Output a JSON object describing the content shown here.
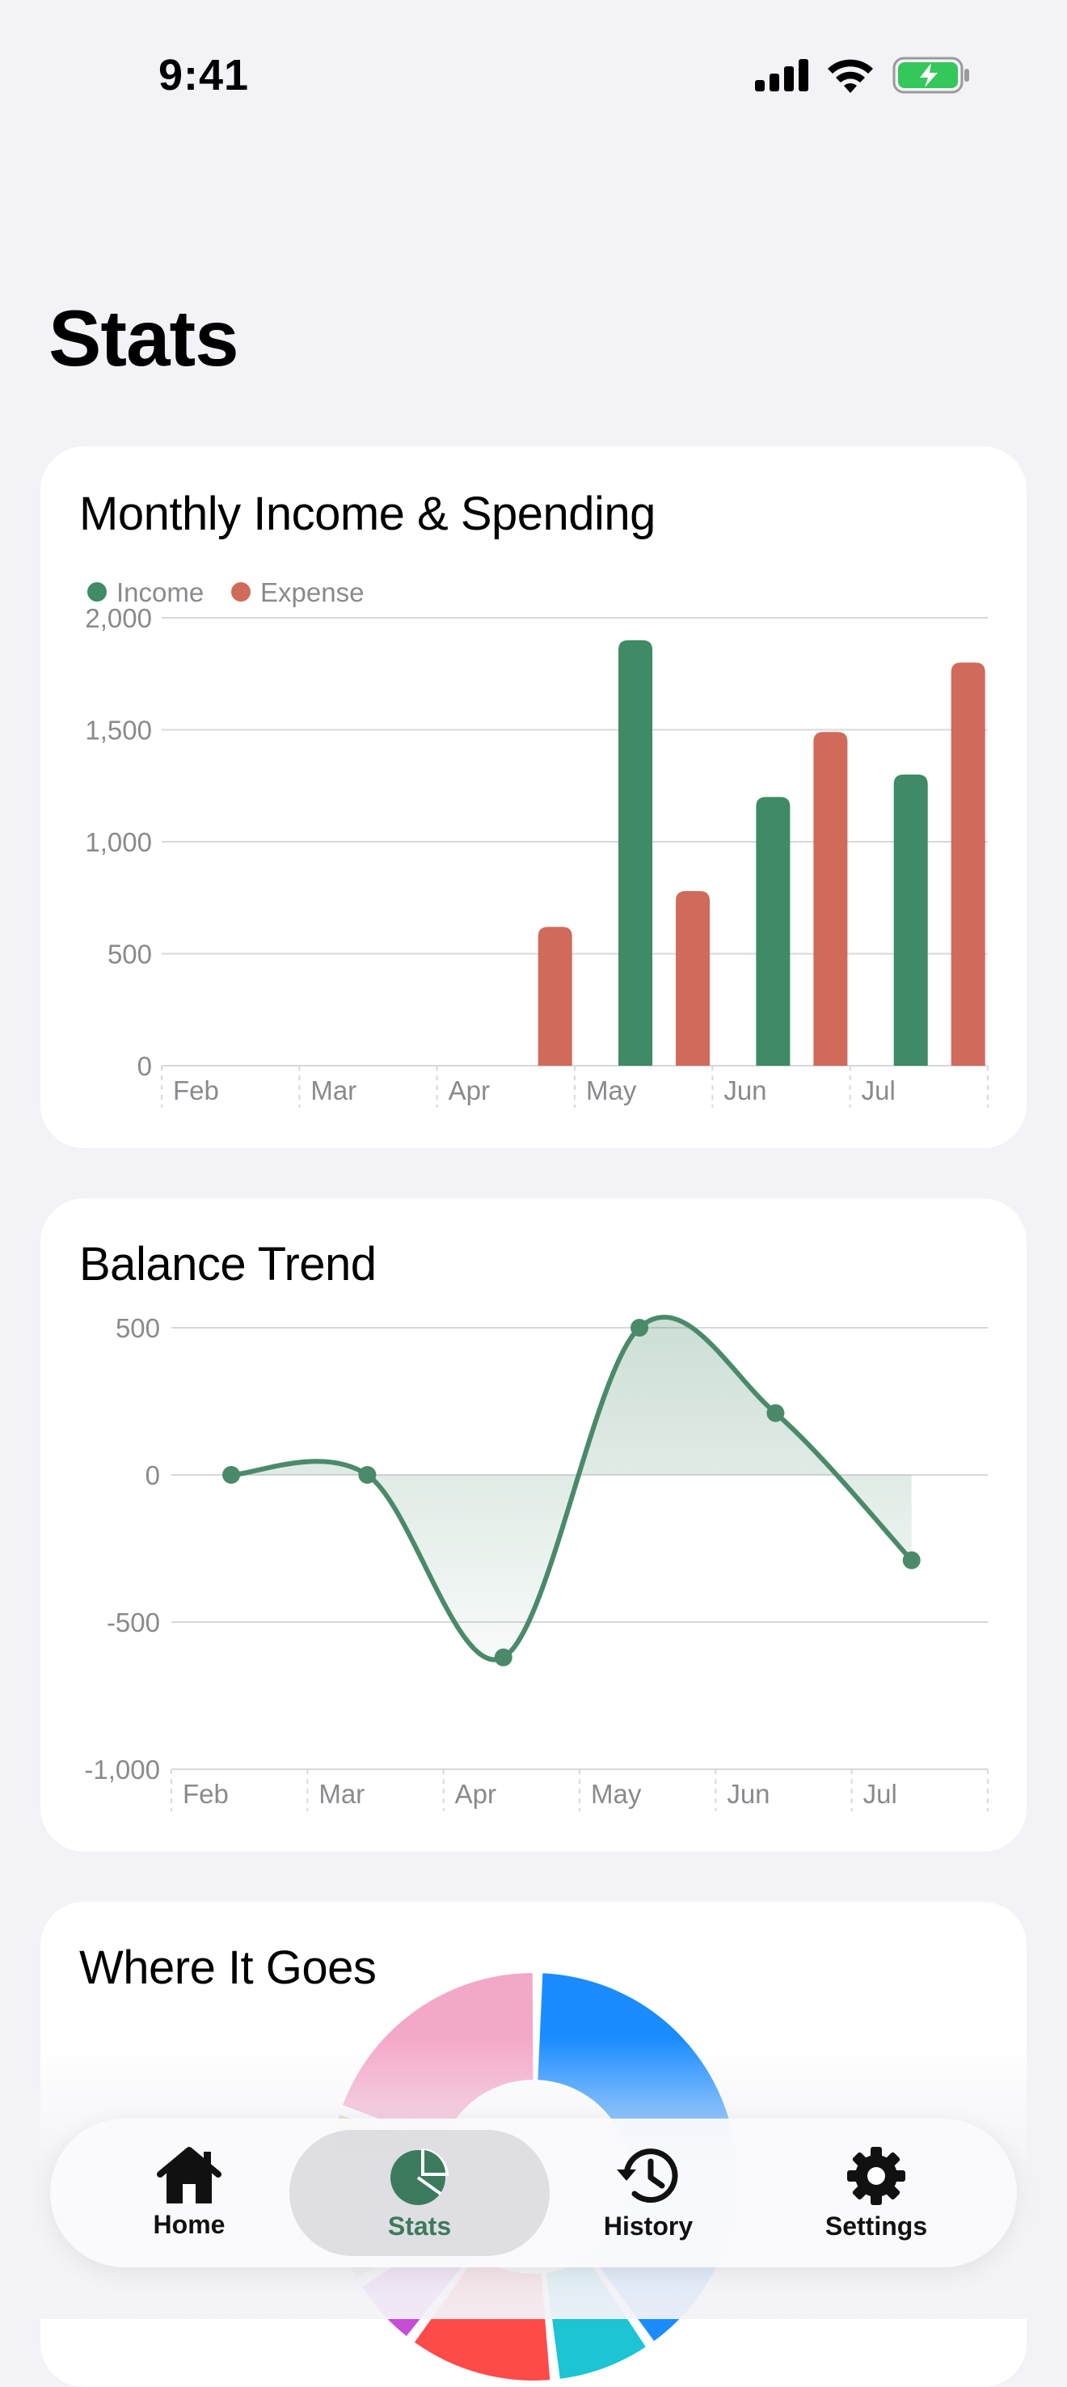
{
  "status": {
    "time": "9:41",
    "icons": [
      "cellular-signal-icon",
      "wifi-icon",
      "battery-charging-icon"
    ],
    "battery_color": "#34c759"
  },
  "page": {
    "title": "Stats"
  },
  "colors": {
    "income": "#3e8b65",
    "expense": "#d06a5a",
    "balance": "#4a8a6a",
    "grid": "#d8d8dc",
    "axis_text": "#8a8a8e"
  },
  "income_spending": {
    "title": "Monthly Income & Spending",
    "chart_data": {
      "type": "bar",
      "categories": [
        "Feb",
        "Mar",
        "Apr",
        "May",
        "Jun",
        "Jul"
      ],
      "series": [
        {
          "name": "Income",
          "values": [
            0,
            0,
            0,
            1900,
            1200,
            1300
          ]
        },
        {
          "name": "Expense",
          "values": [
            0,
            0,
            620,
            780,
            1490,
            1800
          ]
        }
      ],
      "yticks": [
        "0",
        "500",
        "1,000",
        "1,500",
        "2,000"
      ],
      "ylim": [
        0,
        2000
      ],
      "grid": true,
      "legend": "top-left"
    }
  },
  "balance_trend": {
    "title": "Balance Trend",
    "chart_data": {
      "type": "area",
      "categories": [
        "Feb",
        "Mar",
        "Apr",
        "May",
        "Jun",
        "Jul"
      ],
      "values": [
        0,
        0,
        -620,
        500,
        210,
        -290
      ],
      "yticks": [
        "-1,000",
        "-500",
        "0",
        "500"
      ],
      "ylim": [
        -1000,
        500
      ],
      "grid": true
    }
  },
  "where_it_goes": {
    "title": "Where It Goes",
    "chart_data": {
      "type": "pie",
      "slices": [
        {
          "color": "#1a8cff",
          "value": 40
        },
        {
          "color": "#1cc4d4",
          "value": 8
        },
        {
          "color": "#ff4a4a",
          "value": 12
        },
        {
          "color": "#c74cd6",
          "value": 6
        },
        {
          "color": "#e8c8a8",
          "value": 14
        },
        {
          "color": "#f4a8c8",
          "value": 20
        }
      ]
    }
  },
  "tabbar": {
    "items": [
      {
        "label": "Home",
        "icon": "house-icon"
      },
      {
        "label": "Stats",
        "icon": "pie-chart-icon"
      },
      {
        "label": "History",
        "icon": "clock-history-icon"
      },
      {
        "label": "Settings",
        "icon": "gear-icon"
      }
    ],
    "active": "Stats"
  }
}
